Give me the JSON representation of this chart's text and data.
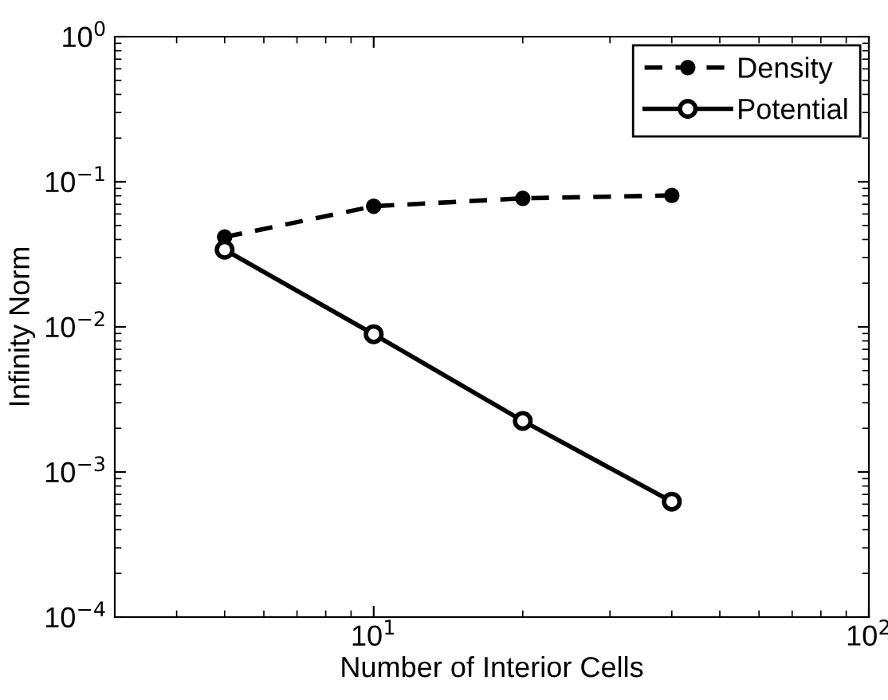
{
  "chart_data": {
    "type": "line",
    "xlabel": "Number of Interior Cells",
    "ylabel": "Infinity Norm",
    "log": "xy",
    "xlim": [
      3,
      100
    ],
    "ylim": [
      0.0001,
      1
    ],
    "xticks": [
      {
        "value": 10,
        "label": "10$^{1}$"
      },
      {
        "value": 100,
        "label": "10$^{2}$"
      }
    ],
    "yticks": [
      {
        "value": 0.0001,
        "label": "10$^{−4}$"
      },
      {
        "value": 0.001,
        "label": "10$^{−3}$"
      },
      {
        "value": 0.01,
        "label": "10$^{−2}$"
      },
      {
        "value": 0.1,
        "label": "10$^{−1}$"
      },
      {
        "value": 1,
        "label": "10$^{0}$"
      }
    ],
    "x": [
      5,
      10,
      20,
      40
    ],
    "grid": false,
    "legend": "top right",
    "series": [
      {
        "name": "Density",
        "color": "#000000",
        "values": [
          0.0416,
          0.0678,
          0.0769,
          0.0805
        ],
        "marker": "circle",
        "line_style": "dashed"
      },
      {
        "name": "Potential",
        "color": "#000000",
        "values": [
          0.034,
          0.0089,
          0.00225,
          0.000625
        ],
        "marker": "circle",
        "line_style": "solid"
      }
    ]
  }
}
